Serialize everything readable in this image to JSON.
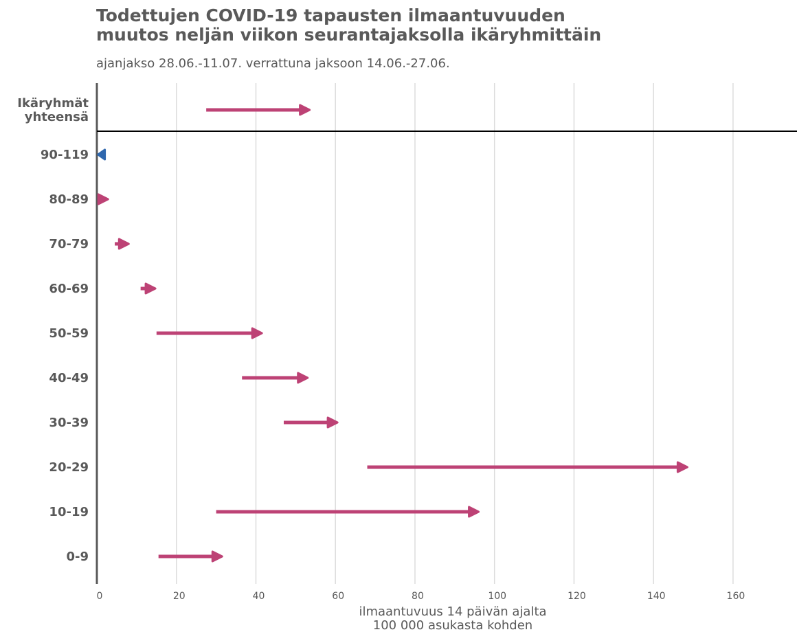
{
  "chart_data": {
    "type": "arrow",
    "title": [
      "Todettujen COVID-19 tapausten ilmaantuvuuden",
      "muutos neljän viikon seurantajaksolla ikäryhmittäin"
    ],
    "subtitle": "ajanjakso 28.06.-11.07. verrattuna jaksoon 14.06.-27.06.",
    "xlabel": [
      "ilmaantuvuus 14 päivän ajalta",
      "100 000 asukasta kohden"
    ],
    "xlim": [
      0,
      176
    ],
    "xticks": [
      0,
      20,
      40,
      60,
      80,
      100,
      120,
      140,
      160
    ],
    "grid": true,
    "colors": {
      "increase": "#bd4275",
      "decrease": "#2f67ad",
      "text": "#595959",
      "grid": "#dcdcdc",
      "axis": "#595959"
    },
    "series": [
      {
        "name": "Ikäryhmät yhteensä",
        "label_lines": [
          "Ikäryhmät",
          "yhteensä"
        ],
        "start": 27.5,
        "end": 53.5,
        "direction": "increase"
      },
      {
        "name": "90-119",
        "label_lines": [
          "90-119"
        ],
        "start": 2.0,
        "end": 0.3,
        "direction": "decrease"
      },
      {
        "name": "80-89",
        "label_lines": [
          "80-89"
        ],
        "start": 0.3,
        "end": 2.8,
        "direction": "increase"
      },
      {
        "name": "70-79",
        "label_lines": [
          "70-79"
        ],
        "start": 4.5,
        "end": 8.0,
        "direction": "increase"
      },
      {
        "name": "60-69",
        "label_lines": [
          "60-69"
        ],
        "start": 11.0,
        "end": 14.7,
        "direction": "increase"
      },
      {
        "name": "50-59",
        "label_lines": [
          "50-59"
        ],
        "start": 15.0,
        "end": 41.5,
        "direction": "increase"
      },
      {
        "name": "40-49",
        "label_lines": [
          "40-49"
        ],
        "start": 36.5,
        "end": 53.0,
        "direction": "increase"
      },
      {
        "name": "30-39",
        "label_lines": [
          "30-39"
        ],
        "start": 47.0,
        "end": 60.5,
        "direction": "increase"
      },
      {
        "name": "20-29",
        "label_lines": [
          "20-29"
        ],
        "start": 68.0,
        "end": 148.5,
        "direction": "increase"
      },
      {
        "name": "10-19",
        "label_lines": [
          "10-19"
        ],
        "start": 30.0,
        "end": 96.0,
        "direction": "increase"
      },
      {
        "name": "0-9",
        "label_lines": [
          "0-9"
        ],
        "start": 15.5,
        "end": 31.5,
        "direction": "increase"
      }
    ]
  }
}
